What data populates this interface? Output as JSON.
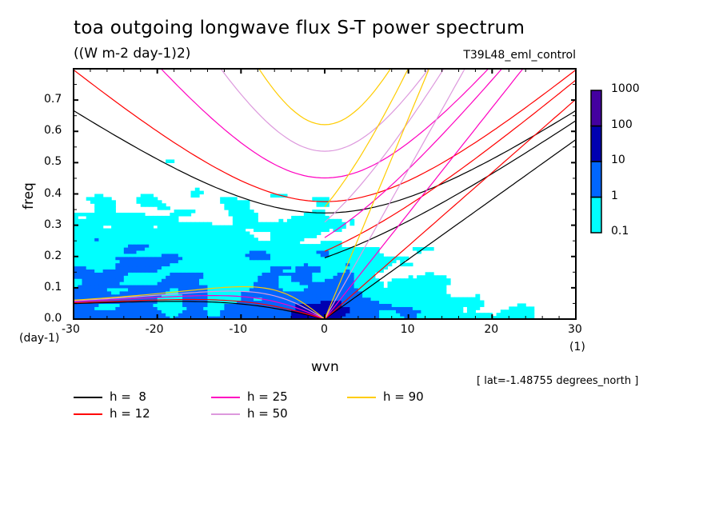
{
  "chart_data": {
    "type": "heatmap",
    "title": "toa outgoing longwave flux S-T power spectrum",
    "subtitle": "((W m-2 day-1)2)",
    "run_label": "T39L48_eml_control",
    "xlabel": "wvn",
    "x_unit": "(1)",
    "ylabel": "freq",
    "y_unit": "(day-1)",
    "annotation": "[ lat=-1.48755 degrees_north ]",
    "xlim": [
      -30,
      30
    ],
    "ylim": [
      0.0,
      0.8
    ],
    "x_ticks": [
      "-30",
      "-20",
      "-10",
      "0",
      "10",
      "20",
      "30"
    ],
    "x_tick_values": [
      -30,
      -20,
      -10,
      0,
      10,
      20,
      30
    ],
    "y_ticks": [
      "0.0",
      "0.1",
      "0.2",
      "0.3",
      "0.4",
      "0.5",
      "0.6",
      "0.7"
    ],
    "y_tick_values": [
      0.0,
      0.1,
      0.2,
      0.3,
      0.4,
      0.5,
      0.6,
      0.7
    ],
    "colorbar": {
      "levels": [
        "0.1",
        "1",
        "10",
        "100",
        "1000"
      ],
      "colors": [
        "#00ffff",
        "#0066ff",
        "#0000b0",
        "#4400a0"
      ]
    },
    "dispersion_curves": {
      "equivalent_depths_m": [
        8,
        12,
        25,
        50,
        90
      ],
      "labels": [
        "h =  8",
        "h = 12",
        "h = 25",
        "h = 50",
        "h = 90"
      ],
      "colors": [
        "#000000",
        "#ff0000",
        "#ff00c0",
        "#dd99dd",
        "#ffcc00"
      ],
      "wave_types": [
        "Kelvin",
        "n=1 Rossby",
        "n=1 inertia-gravity",
        "n=0 eastward inertia-gravity"
      ],
      "ig_n1_min_freq": [
        0.34,
        0.37,
        0.44,
        0.525,
        0.61
      ]
    }
  },
  "legend": [
    {
      "label": "h =  8",
      "color": "#000000"
    },
    {
      "label": "h = 12",
      "color": "#ff0000"
    },
    {
      "label": "h = 25",
      "color": "#ff00c0"
    },
    {
      "label": "h = 50",
      "color": "#dd99dd"
    },
    {
      "label": "h = 90",
      "color": "#ffcc00"
    }
  ]
}
